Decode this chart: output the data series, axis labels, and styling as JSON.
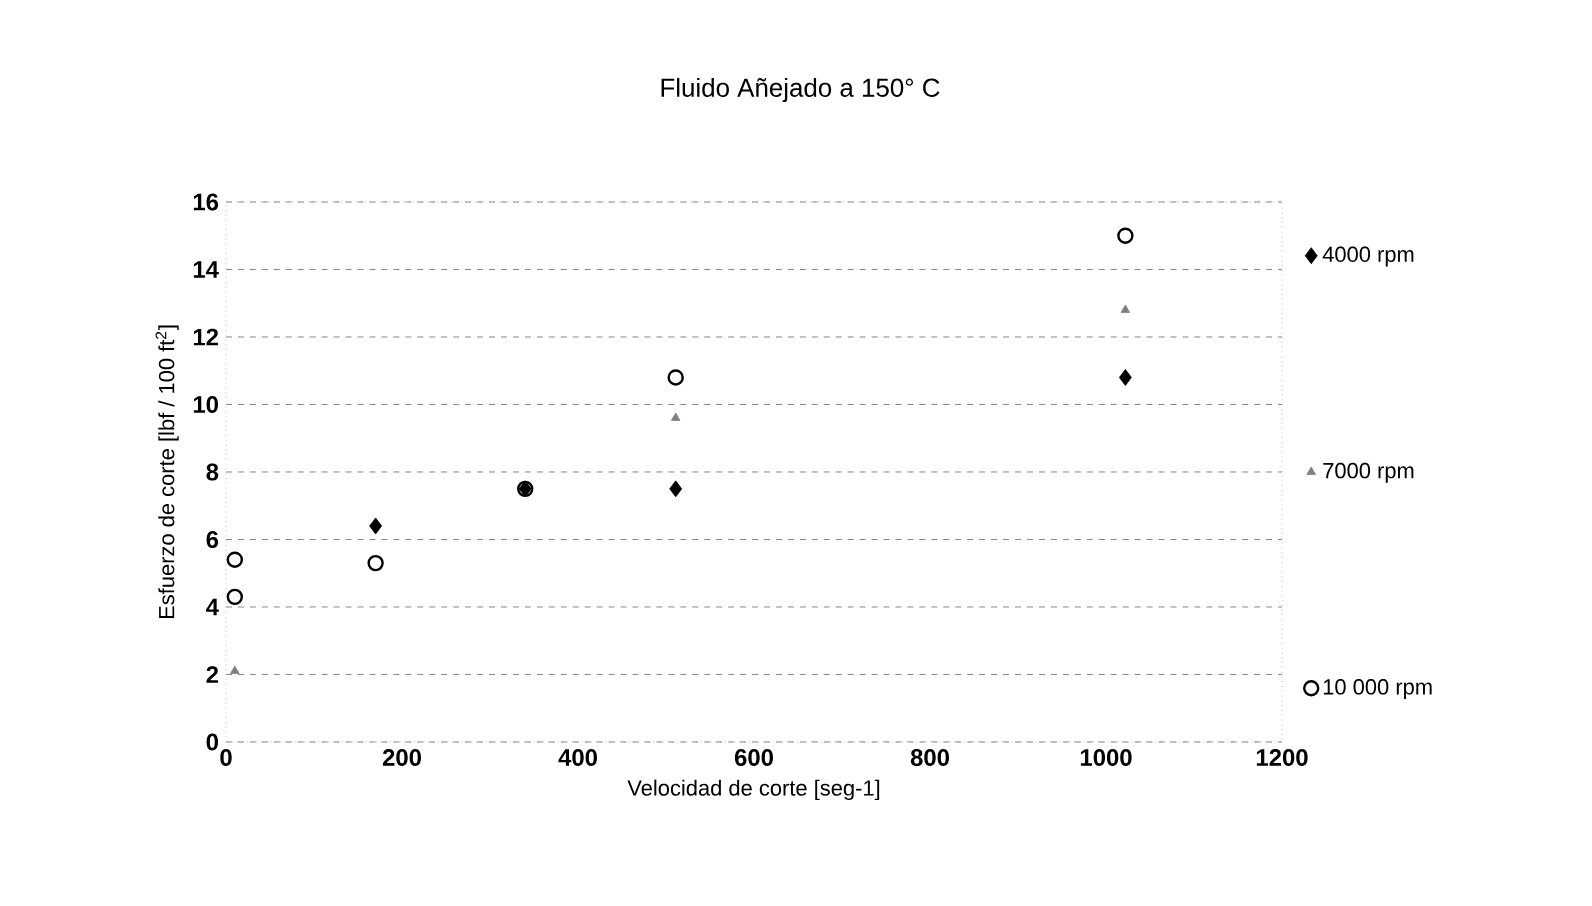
{
  "chart_data": {
    "type": "scatter",
    "title": "Fluido Añejado a 150° C",
    "xlabel": "Velocidad de corte [seg-1]",
    "ylabel": "Esfuerzo de corte [lbf / 100 ft$^{2}$]",
    "xlim": [
      0,
      1200
    ],
    "xticks": [
      0,
      200,
      400,
      600,
      800,
      1000,
      1200
    ],
    "ylim": [
      0,
      16
    ],
    "yticks": [
      0,
      2,
      4,
      6,
      8,
      10,
      12,
      14,
      16
    ],
    "grid": "y",
    "legend": "right",
    "series": [
      {
        "name": "4000 rpm",
        "color": "#000000",
        "marker": "diamond",
        "x": [
          170,
          340,
          511,
          1022
        ],
        "values": [
          6.4,
          7.5,
          7.5,
          10.8
        ]
      },
      {
        "name": "7000 rpm",
        "color": "#808080",
        "marker": "triangle",
        "x": [
          10,
          511,
          1022
        ],
        "values": [
          2.1,
          9.6,
          12.8
        ]
      },
      {
        "name": "10 000 rpm",
        "color": "#000000",
        "marker": "circle",
        "x": [
          10,
          10,
          170,
          340,
          511,
          1022
        ],
        "values": [
          4.3,
          5.4,
          5.3,
          7.5,
          10.8,
          15
        ]
      }
    ]
  }
}
